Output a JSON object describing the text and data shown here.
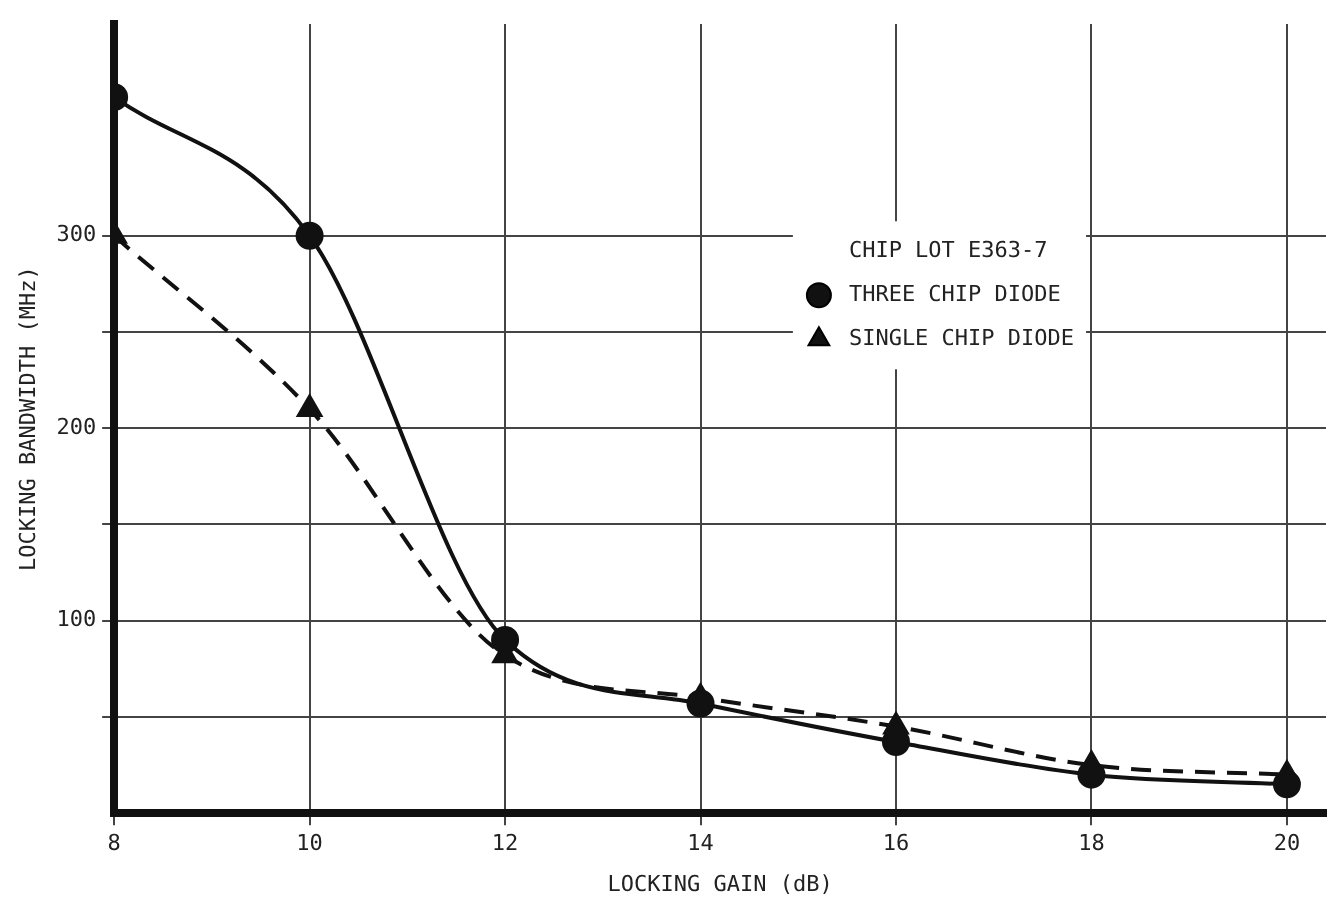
{
  "chart_data": {
    "type": "line",
    "xlabel": "LOCKING GAIN (dB)",
    "ylabel": "LOCKING BANDWIDTH (MHz)",
    "legend_title": "CHIP LOT E363-7",
    "x": [
      8,
      10,
      12,
      14,
      16,
      18,
      20
    ],
    "series": [
      {
        "name": "THREE CHIP DIODE",
        "color": "#111111",
        "marker": "circle",
        "line_style": "solid",
        "values": [
          372,
          300,
          90,
          57,
          37,
          20,
          15
        ]
      },
      {
        "name": "SINGLE CHIP DIODE",
        "color": "#111111",
        "marker": "triangle",
        "line_style": "dashed",
        "values": [
          300,
          210,
          82,
          60,
          45,
          25,
          20
        ]
      }
    ],
    "xlim": [
      8,
      20.4
    ],
    "ylim": [
      0,
      410
    ],
    "xticks": [
      8,
      10,
      12,
      14,
      16,
      18,
      20
    ],
    "yticks": [
      {
        "value": 50,
        "label": null
      },
      100,
      {
        "value": 150,
        "label": null
      },
      200,
      {
        "value": 250,
        "label": null
      },
      300
    ],
    "grid": true,
    "legend": "top right"
  }
}
